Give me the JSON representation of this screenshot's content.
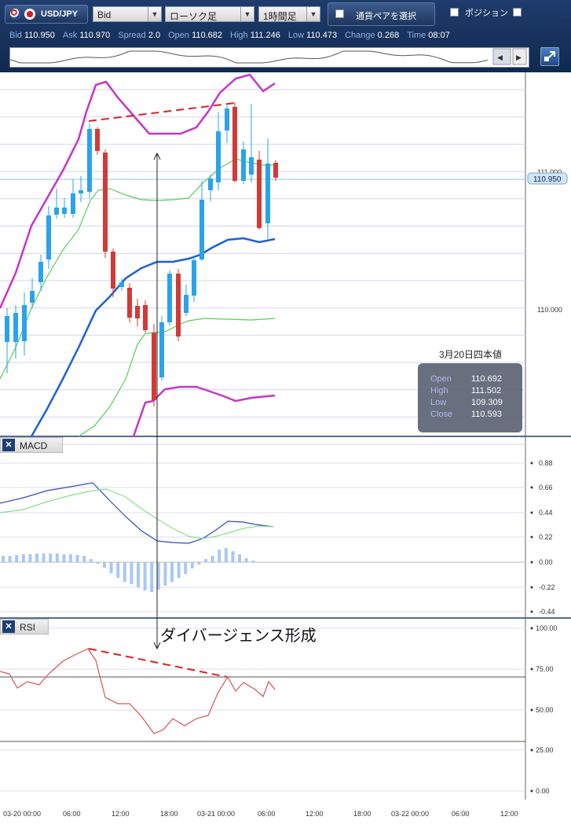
{
  "toolbar": {
    "symbol": "USD/JPY",
    "price_side": "Bid",
    "chart_type": "ローソク足",
    "timeframe": "1時間足",
    "pair_select": "通貨ペアを選択",
    "position": "ポジション"
  },
  "quote": [
    {
      "k": "Bid",
      "v": "110.950"
    },
    {
      "k": "Ask",
      "v": "110.970"
    },
    {
      "k": "Spread",
      "v": "2.0"
    },
    {
      "k": "Open",
      "v": "110.682"
    },
    {
      "k": "High",
      "v": "111.246"
    },
    {
      "k": "Low",
      "v": "110.473"
    },
    {
      "k": "Change",
      "v": "0.268"
    },
    {
      "k": "Time",
      "v": "08:07"
    }
  ],
  "price_panel": {
    "y_labels": [
      "111.000",
      "110.000"
    ],
    "current_price": "110.950",
    "info_title": "3月20日四本値",
    "info": [
      {
        "k": "Open",
        "v": "110.692"
      },
      {
        "k": "High",
        "v": "111.502"
      },
      {
        "k": "Low",
        "v": "109.309"
      },
      {
        "k": "Close",
        "v": "110.593"
      }
    ]
  },
  "macd_panel": {
    "label": "MACD",
    "y_labels": [
      "0.88",
      "0.66",
      "0.44",
      "0.22",
      "0.00",
      "-0.22",
      "-0.44"
    ]
  },
  "rsi_panel": {
    "label": "RSI",
    "y_labels": [
      "100.00",
      "75.00",
      "50.00",
      "25.00",
      "0.00"
    ]
  },
  "annotation": "ダイバージェンス形成",
  "x_axis": [
    "03-20 00:00",
    "06:00",
    "12:00",
    "18:00",
    "03-21 00:00",
    "06:00",
    "12:00",
    "18:00",
    "03-22 00:00",
    "06:00",
    "12:00"
  ],
  "colors": {
    "up": "#2aa3ec",
    "down": "#d33a35",
    "bollinger_outer": "#c535c8",
    "bollinger_mid": "#55d055",
    "sma": "#1e5fd6",
    "macd": "#3547c8",
    "signal": "#88e088",
    "histogram": "#a9c8f2",
    "rsi": "#d9534f",
    "divergence": "#e02020"
  }
}
